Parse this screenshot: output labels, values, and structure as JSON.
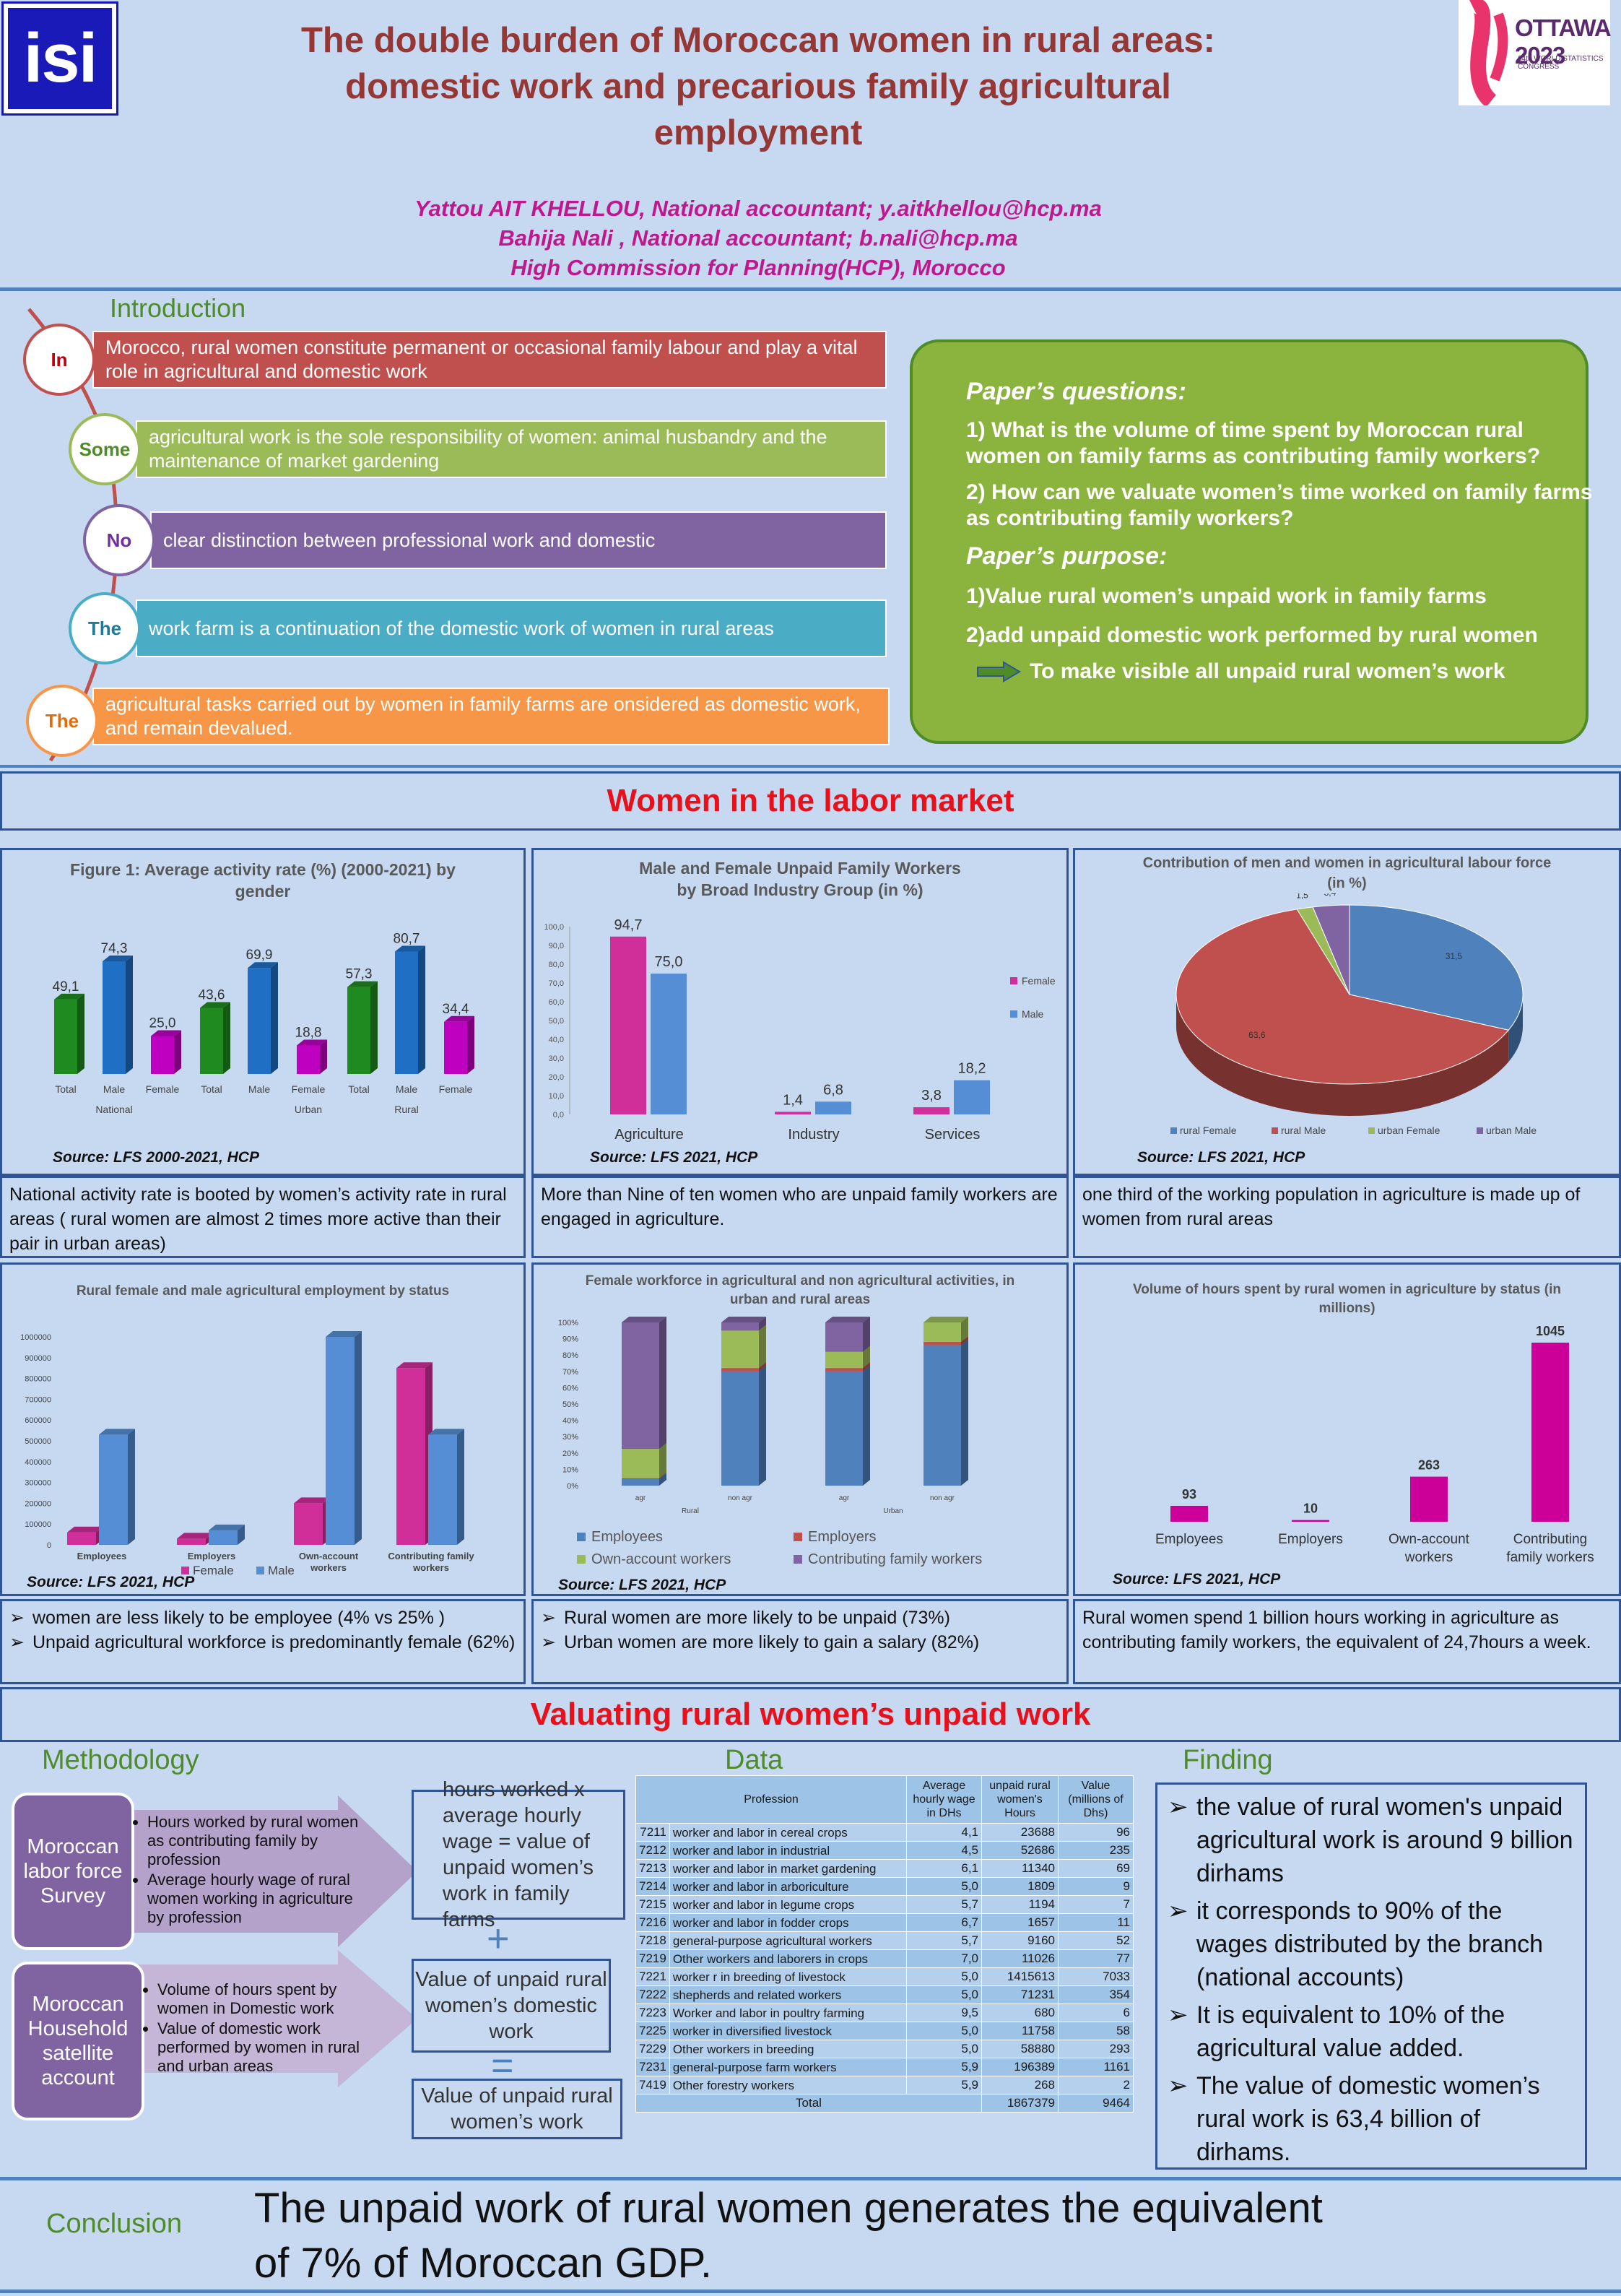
{
  "header": {
    "logo_left": "isi",
    "title": [
      "The double burden of Moroccan women in rural areas:",
      "domestic work and precarious family agricultural",
      "employment"
    ],
    "authors": [
      "Yattou AIT KHELLOU, National accountant; y.aitkhellou@hcp.ma",
      "Bahija Nali , National accountant; b.nali@hcp.ma",
      "High Commission for Planning(HCP), Morocco"
    ],
    "logo_right_title": "OTTAWA 2023",
    "logo_right_sub": "64th WORLD STATISTICS CONGRESS"
  },
  "introduction": {
    "heading": "Introduction",
    "items": [
      {
        "circle": "In",
        "text": " Morocco, rural women constitute permanent or occasional family labour and play a vital role in agricultural and domestic work",
        "color": "#c0504d"
      },
      {
        "circle": "Some",
        "text": "agricultural work is the sole responsibility of women: animal husbandry and the maintenance of market gardening",
        "color": "#9bbb59"
      },
      {
        "circle": "No",
        "text": "clear distinction between professional work and domestic",
        "color": "#8064a2"
      },
      {
        "circle": "The",
        "text": "work farm is a continuation of the domestic work of women in rural areas",
        "color": "#4bacc6"
      },
      {
        "circle": "The",
        "text": "agricultural tasks carried out by women in family farms are onsidered as domestic work, and remain devalued.",
        "color": "#f79646"
      }
    ]
  },
  "questions": {
    "h1": "Paper’s questions:",
    "q1": "1) What is the volume of time spent by Moroccan rural women on family farms as contributing family workers?",
    "q2": "2) How can we valuate women’s time worked on family farms as contributing family workers?",
    "h2": "Paper’s purpose:",
    "p1": "1)Value rural women’s unpaid work in family farms",
    "p2": "2)add unpaid domestic work performed by rural women",
    "p3": "To make visible all unpaid rural women’s work"
  },
  "section1_title": "Women in the labor market",
  "section2_title": "Valuating rural women’s unpaid work",
  "source_2000": "Source: LFS 2000-2021, HCP",
  "source_2021": "Source: LFS 2021, HCP",
  "fig1": {
    "title": [
      "Figure 1: Average activity rate (%) (2000-2021) by",
      "gender"
    ],
    "bars": [
      {
        "label": "Total",
        "value": "49,1",
        "color": "#1f8a1f"
      },
      {
        "label": "Male",
        "value": "74,3",
        "color": "#1f6fc5"
      },
      {
        "label": "Female",
        "value": "25,0",
        "color": "#c000c0"
      },
      {
        "label": "Total",
        "value": "43,6",
        "color": "#1f8a1f"
      },
      {
        "label": "Male",
        "value": "69,9",
        "color": "#1f6fc5"
      },
      {
        "label": "Female",
        "value": "18,8",
        "color": "#c000c0"
      },
      {
        "label": "Total",
        "value": "57,3",
        "color": "#1f8a1f"
      },
      {
        "label": "Male",
        "value": "80,7",
        "color": "#1f6fc5"
      },
      {
        "label": "Female",
        "value": "34,4",
        "color": "#c000c0"
      }
    ],
    "groups": [
      "National",
      "Urban",
      "Rural"
    ]
  },
  "fig2": {
    "title": [
      "Male and Female Unpaid Family Workers",
      "by Broad Industry Group (in %)"
    ],
    "yticks": [
      "100,0",
      "90,0",
      "80,0",
      "70,0",
      "60,0",
      "50,0",
      "40,0",
      "30,0",
      "20,0",
      "10,0",
      "0,0"
    ],
    "categories": [
      "Agriculture",
      "Industry",
      "Services"
    ],
    "female": [
      "94,7",
      "1,4",
      "3,8"
    ],
    "male": [
      "75,0",
      "6,8",
      "18,2"
    ],
    "legend_female": "Female",
    "legend_male": "Male"
  },
  "fig3": {
    "title": [
      "Contribution of men and women in agricultural labour force",
      "(in %)"
    ],
    "slices": [
      {
        "name": "rural Female",
        "value": "31,5",
        "color": "#4f81bd"
      },
      {
        "name": "rural Male",
        "value": "63,6",
        "color": "#c0504d"
      },
      {
        "name": "urban Female",
        "value": "1,5",
        "color": "#9bbb59"
      },
      {
        "name": "urban Male",
        "value": "3,4",
        "color": "#8064a2"
      }
    ]
  },
  "cap1": "National activity rate is booted by women’s activity rate in rural areas ( rural women are almost 2 times more active than their pair in urban areas)",
  "cap2": "More than Nine of ten  women who are unpaid family workers are engaged in agriculture.",
  "cap3": "one third of the working population in agriculture is made up of women from rural areas",
  "fig4": {
    "title": "Rural female and male agricultural  employment by status",
    "yticks": [
      "1000000",
      "900000",
      "800000",
      "700000",
      "600000",
      "500000",
      "400000",
      "300000",
      "200000",
      "100000",
      "0"
    ],
    "categories": [
      "Employees",
      "Employers",
      "Own-account workers",
      "Contributing family workers"
    ],
    "legend_female": "Female",
    "legend_male": "Male"
  },
  "fig5": {
    "title": [
      "Female workforce in agricultural and non agricultural activities, in",
      "urban and rural areas"
    ],
    "yticks": [
      "100%",
      "90%",
      "80%",
      "70%",
      "60%",
      "50%",
      "40%",
      "30%",
      "20%",
      "10%",
      "0%"
    ],
    "bars": [
      "agr",
      "non agr",
      "agr",
      "non agr"
    ],
    "groups": [
      "Rural",
      "Urban"
    ],
    "legend": [
      "Employees",
      "Employers",
      "Own-account workers",
      "Contributing family workers"
    ]
  },
  "fig6": {
    "title": [
      "Volume of hours spent by rural women in agriculture by status  (in",
      "millions)"
    ],
    "values": [
      "93",
      "10",
      "263",
      "1045"
    ],
    "categories": [
      "Employees",
      "Employers",
      "Own-account workers",
      "Contributing family workers"
    ]
  },
  "cap4": [
    "women are less likely to be employee (4% vs 25% )",
    "Unpaid agricultural workforce is predominantly female (62%)"
  ],
  "cap5": [
    "Rural women are more likely to be unpaid (73%)",
    "Urban women are more likely to gain a salary (82%)"
  ],
  "cap6": "Rural women spend 1 billion hours working in agriculture as contributing family workers, the equivalent of 24,7hours a week.",
  "methodology": {
    "heading": "Methodology",
    "box1": "Moroccan labor force Survey",
    "box1_items": [
      "Hours worked by rural women as contributing family by profession",
      "Average hourly wage of rural women working in agriculture by profession"
    ],
    "box2": "Moroccan Household satellite account",
    "box2_items": [
      "Volume of hours spent by women in Domestic work",
      "Value of domestic work performed by women in rural and urban areas"
    ],
    "out1": "hours worked x average hourly wage = value of unpaid women’s work  in family farms",
    "plus": "+",
    "out2": "Value of unpaid rural women’s domestic work",
    "equals": "=",
    "out3": "Value of unpaid rural women’s work"
  },
  "data_section": {
    "heading": "Data",
    "headers": [
      "Profession",
      "Average hourly wage in DHs",
      "unpaid rural women's Hours",
      "Value (millions of Dhs)"
    ],
    "rows": [
      [
        "7211",
        "worker and labor in cereal crops",
        "4,1",
        "23688",
        "96"
      ],
      [
        "7212",
        "worker and labor in industrial",
        "4,5",
        "52686",
        "235"
      ],
      [
        "7213",
        "worker and labor in market gardening",
        "6,1",
        "11340",
        "69"
      ],
      [
        "7214",
        "worker and labor in arboriculture",
        "5,0",
        "1809",
        "9"
      ],
      [
        "7215",
        "worker and labor in legume crops",
        "5,7",
        "1194",
        "7"
      ],
      [
        "7216",
        "worker and labor in fodder crops",
        "6,7",
        "1657",
        "11"
      ],
      [
        "7218",
        "general-purpose agricultural workers",
        "5,7",
        "9160",
        "52"
      ],
      [
        "7219",
        "Other workers and laborers in crops",
        "7,0",
        "11026",
        "77"
      ],
      [
        "7221",
        "worker r in  breeding of  livestock",
        "5,0",
        "1415613",
        "7033"
      ],
      [
        "7222",
        "shepherds and related workers",
        "5,0",
        "71231",
        "354"
      ],
      [
        "7223",
        "Worker and labor in poultry farming",
        "9,5",
        "680",
        "6"
      ],
      [
        "7225",
        "worker in diversified livestock",
        "5,0",
        "11758",
        "58"
      ],
      [
        "7229",
        "Other workers in breeding",
        "5,0",
        "58880",
        "293"
      ],
      [
        "7231",
        "general-purpose farm workers",
        "5,9",
        "196389",
        "1161"
      ],
      [
        "7419",
        "Other forestry workers",
        "5,9",
        "268",
        "2"
      ]
    ],
    "total": [
      "Total",
      "1867379",
      "9464"
    ]
  },
  "finding": {
    "heading": "Finding",
    "items": [
      "the value of rural women's unpaid agricultural work is around 9 billion dirhams",
      "it corresponds to 90% of the wages distributed by the branch (national accounts)",
      "It is equivalent to 10% of the agricultural value added.",
      "The value of domestic women’s rural work is 63,4 billion of dirhams."
    ]
  },
  "conclusion": {
    "label": "Conclusion",
    "text": [
      "The unpaid work of rural women generates the equivalent",
      "of 7% of Moroccan GDP."
    ]
  },
  "chart_data": [
    {
      "type": "bar",
      "title": "Figure 1: Average activity rate (%) (2000-2021) by gender",
      "categories": [
        "National Total",
        "National Male",
        "National Female",
        "Urban Total",
        "Urban Male",
        "Urban Female",
        "Rural Total",
        "Rural Male",
        "Rural Female"
      ],
      "values": [
        49.1,
        74.3,
        25.0,
        43.6,
        69.9,
        18.8,
        57.3,
        80.7,
        34.4
      ]
    },
    {
      "type": "bar",
      "title": "Male and Female Unpaid Family Workers by Broad Industry Group (in %)",
      "categories": [
        "Agriculture",
        "Industry",
        "Services"
      ],
      "series": [
        {
          "name": "Female",
          "values": [
            94.7,
            1.4,
            3.8
          ]
        },
        {
          "name": "Male",
          "values": [
            75.0,
            6.8,
            18.2
          ]
        }
      ],
      "ylim": [
        0,
        100
      ]
    },
    {
      "type": "pie",
      "title": "Contribution of men and women in agricultural labour force (in %)",
      "categories": [
        "rural Female",
        "rural Male",
        "urban Female",
        "urban Male"
      ],
      "values": [
        31.5,
        63.6,
        1.5,
        3.4
      ]
    },
    {
      "type": "bar",
      "title": "Rural female and male agricultural  employment by status",
      "categories": [
        "Employees",
        "Employers",
        "Own-account workers",
        "Contributing family workers"
      ],
      "series": [
        {
          "name": "Female",
          "values": [
            60000,
            30000,
            200000,
            850000
          ]
        },
        {
          "name": "Male",
          "values": [
            530000,
            70000,
            1000000,
            530000
          ]
        }
      ],
      "ylim": [
        0,
        1000000
      ]
    },
    {
      "type": "bar",
      "title": "Female workforce in agricultural and non agricultural activities, in urban and rural areas",
      "categories": [
        "Rural agr",
        "Rural non agr",
        "Urban agr",
        "Urban non agr"
      ],
      "series": [
        {
          "name": "Employees",
          "values": [
            4,
            70,
            70,
            86
          ]
        },
        {
          "name": "Employers",
          "values": [
            0.5,
            2,
            2,
            2
          ]
        },
        {
          "name": "Own-account workers",
          "values": [
            18,
            23,
            10,
            12
          ]
        },
        {
          "name": "Contributing family workers",
          "values": [
            77.5,
            5,
            18,
            0
          ]
        }
      ],
      "ylim": [
        0,
        100
      ]
    },
    {
      "type": "bar",
      "title": "Volume of hours spent by rural women in agriculture by status  (in millions)",
      "categories": [
        "Employees",
        "Employers",
        "Own-account workers",
        "Contributing family workers"
      ],
      "values": [
        93,
        10,
        263,
        1045
      ]
    }
  ]
}
